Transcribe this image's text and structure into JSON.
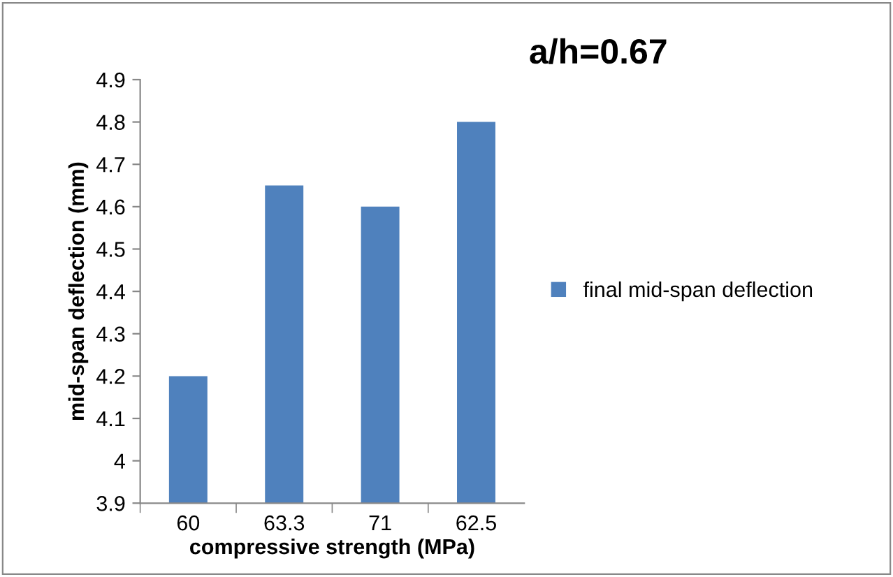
{
  "chart_data": {
    "type": "bar",
    "title": "a/h=0.67",
    "xlabel": "compressive strength (MPa)",
    "ylabel": "mid-span deflection (mm)",
    "categories": [
      "60",
      "63.3",
      "71",
      "62.5"
    ],
    "series": [
      {
        "name": "final mid-span deflection",
        "color": "#4f81bd",
        "values": [
          4.2,
          4.65,
          4.6,
          4.8
        ]
      }
    ],
    "ylim": [
      3.9,
      4.9
    ],
    "yticks": [
      3.9,
      4,
      4.1,
      4.2,
      4.3,
      4.4,
      4.5,
      4.6,
      4.7,
      4.8,
      4.9
    ],
    "grid": false,
    "legend": "right"
  }
}
